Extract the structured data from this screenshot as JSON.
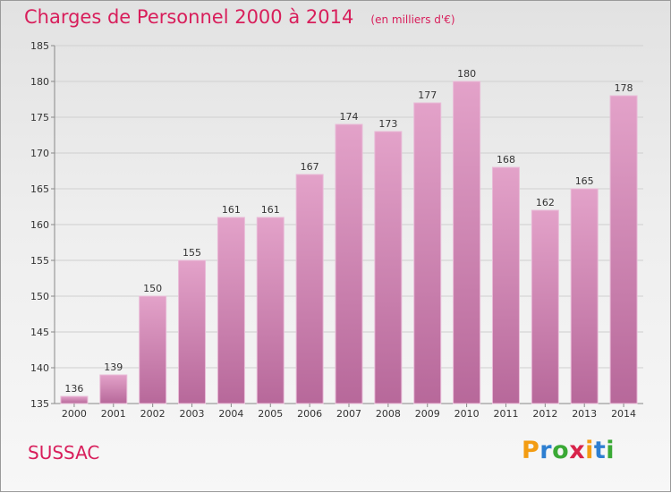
{
  "chart_data": {
    "type": "bar",
    "title": "Charges de Personnel 2000 à 2014",
    "subtitle": "(en milliers d'€)",
    "categories": [
      "2000",
      "2001",
      "2002",
      "2003",
      "2004",
      "2005",
      "2006",
      "2007",
      "2008",
      "2009",
      "2010",
      "2011",
      "2012",
      "2013",
      "2014"
    ],
    "values": [
      136,
      139,
      150,
      155,
      161,
      161,
      167,
      174,
      173,
      177,
      180,
      168,
      162,
      165,
      178
    ],
    "ylim": [
      135,
      185
    ],
    "yticks": [
      135,
      140,
      145,
      150,
      155,
      160,
      165,
      170,
      175,
      180,
      185
    ],
    "grid": true,
    "bar_color": "#e3a2c9",
    "bar_color_dark": "#b7689a"
  },
  "place_name": "SUSSAC",
  "logo": {
    "text": "Proxiti",
    "letter_colors": [
      "#f39c12",
      "#2e7fd1",
      "#3aa935",
      "#d8234a",
      "#f39c12",
      "#2e7fd1",
      "#3aa935"
    ]
  },
  "colors": {
    "title": "#d81e5b",
    "place": "#d81e5b"
  }
}
